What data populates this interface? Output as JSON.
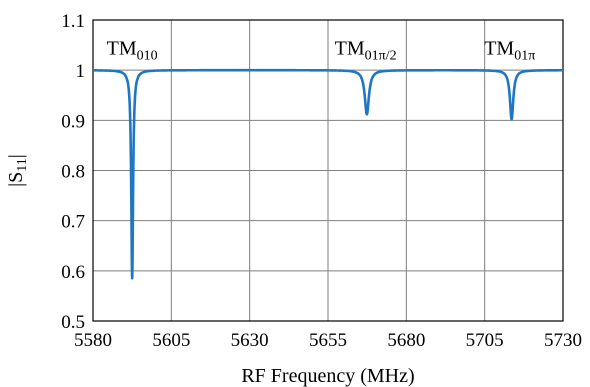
{
  "chart_data": {
    "type": "line",
    "title": "",
    "xlabel": "RF Frequency (MHz)",
    "ylabel_main": "|S",
    "ylabel_sub": "11",
    "ylabel_end": "|",
    "xlim": [
      5580,
      5730
    ],
    "ylim": [
      0.5,
      1.1
    ],
    "xticks": [
      5580,
      5605,
      5630,
      5655,
      5680,
      5705,
      5730
    ],
    "yticks": [
      0.5,
      0.6,
      0.7,
      0.8,
      0.9,
      1,
      1.1
    ],
    "ytick_labels": [
      "0.5",
      "0.6",
      "0.7",
      "0.8",
      "0.9",
      "1",
      "1.1"
    ],
    "grid": true,
    "line_color": "#1f77c4",
    "baseline": 1.0,
    "series": [
      {
        "resonances": [
          {
            "x": 5592.5,
            "y": 0.585,
            "width": 0.35
          },
          {
            "x": 5667.4,
            "y": 0.912,
            "width": 0.8
          },
          {
            "x": 5713.6,
            "y": 0.902,
            "width": 0.65
          }
        ]
      }
    ],
    "annotations": [
      {
        "x": 5592.5,
        "y": 1.045,
        "main": "TM",
        "sub": "010"
      },
      {
        "x": 5667.0,
        "y": 1.045,
        "main": "TM",
        "sub": "01π/2"
      },
      {
        "x": 5713.0,
        "y": 1.045,
        "main": "TM",
        "sub": "01π"
      }
    ]
  }
}
